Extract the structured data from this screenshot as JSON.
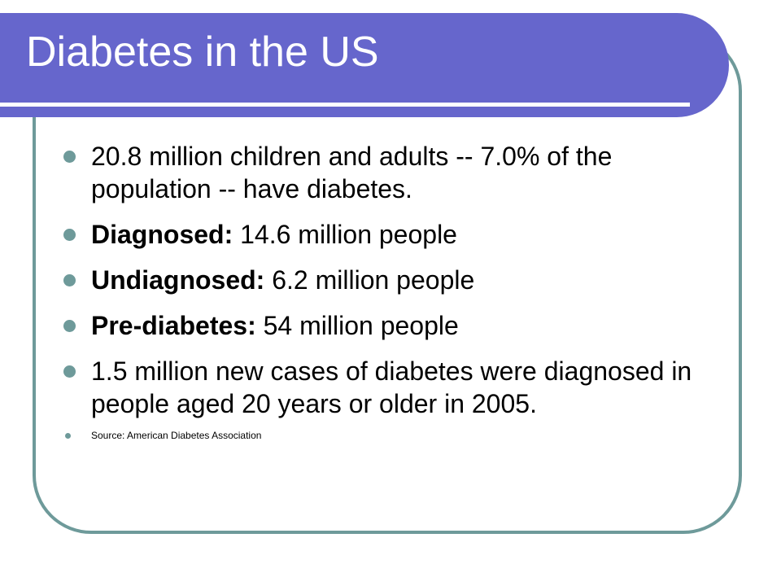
{
  "slide": {
    "title": "Diabetes in the US",
    "bullets": [
      {
        "lead": "",
        "text": "20.8 million children and adults -- 7.0% of the population -- have diabetes."
      },
      {
        "lead": "Diagnosed:",
        "text": " 14.6 million people"
      },
      {
        "lead": "Undiagnosed:",
        "text": " 6.2 million people"
      },
      {
        "lead": "Pre-diabetes:",
        "text": " 54 million people"
      },
      {
        "lead": "",
        "text": "1.5 million new cases of diabetes were diagnosed in people aged 20 years or older in 2005."
      }
    ],
    "source": "Source: American Diabetes Association"
  },
  "colors": {
    "title_bar": "#6666cc",
    "frame_border": "#6e9a9a",
    "bullet": "#6e9a9a",
    "title_text": "#ffffff",
    "body_text": "#000000"
  }
}
